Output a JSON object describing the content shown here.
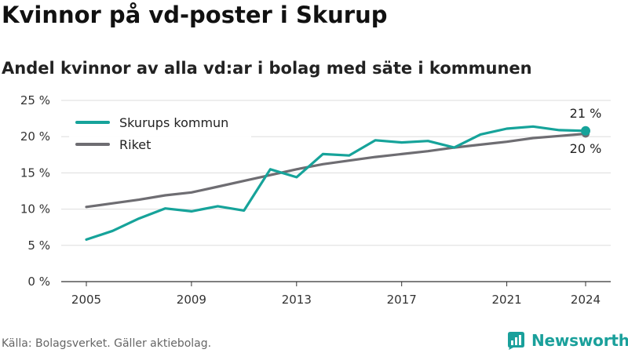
{
  "title": "Kvinnor på vd-poster i Skurup",
  "subtitle": "Andel kvinnor av alla vd:ar i bolag med säte i kommunen",
  "source": "Källa: Bolagsverket. Gäller aktiebolag.",
  "brand": {
    "name": "Newsworthy",
    "logo_icon": "bar-chart-bubble-icon"
  },
  "colors": {
    "skurup": "#16a39a",
    "riket": "#6e6d72",
    "grid": "#dddddd",
    "brand": "#1aa09b"
  },
  "chart_data": {
    "type": "line",
    "title": "Kvinnor på vd-poster i Skurup",
    "subtitle": "Andel kvinnor av alla vd:ar i bolag med säte i kommunen",
    "x": [
      2005,
      2006,
      2007,
      2008,
      2009,
      2010,
      2011,
      2012,
      2013,
      2014,
      2015,
      2016,
      2017,
      2018,
      2019,
      2020,
      2021,
      2022,
      2023,
      2024
    ],
    "x_ticks": [
      "2005",
      "2009",
      "2013",
      "2017",
      "2021",
      "2024"
    ],
    "y_ticks": [
      "0 %",
      "5 %",
      "10 %",
      "15 %",
      "20 %",
      "25 %"
    ],
    "ylim": [
      0,
      25
    ],
    "grid": true,
    "legend_position": "top-left",
    "series": [
      {
        "name": "Skurups kommun",
        "values": [
          5.8,
          7.0,
          8.7,
          10.1,
          9.7,
          10.4,
          9.8,
          15.5,
          14.4,
          17.6,
          17.4,
          19.5,
          19.2,
          19.4,
          18.5,
          20.3,
          21.1,
          21.4,
          20.9,
          20.8
        ],
        "end_label": "21 %"
      },
      {
        "name": "Riket",
        "values": [
          10.3,
          10.8,
          11.3,
          11.9,
          12.3,
          13.1,
          13.9,
          14.7,
          15.5,
          16.2,
          16.7,
          17.2,
          17.6,
          18.0,
          18.5,
          18.9,
          19.3,
          19.8,
          20.1,
          20.4
        ],
        "end_label": "20 %"
      }
    ]
  }
}
